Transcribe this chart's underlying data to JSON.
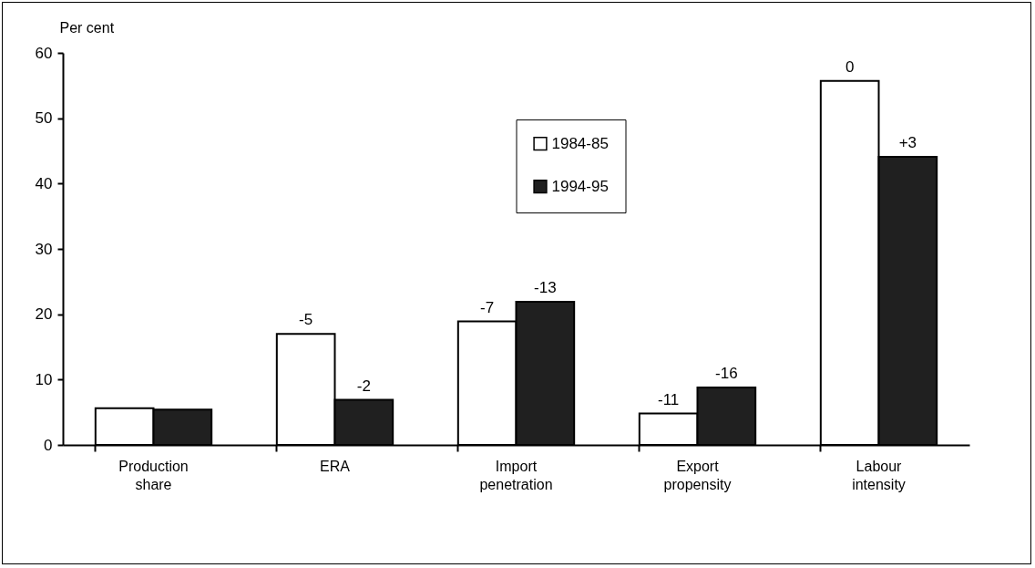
{
  "chart_data": {
    "type": "bar",
    "ylabel": "Per cent",
    "categories": [
      "Production share",
      "ERA",
      "Import penetration",
      "Export propensity",
      "Labour intensity"
    ],
    "series": [
      {
        "name": "1984-85",
        "color": "#ffffff",
        "values": [
          5.6,
          17.0,
          18.9,
          4.8,
          55.7
        ]
      },
      {
        "name": "1994-95",
        "color": "#202020",
        "values": [
          5.4,
          6.9,
          21.9,
          8.8,
          44.1
        ]
      }
    ],
    "annotations": [
      {
        "text": "-5",
        "x": "ERA",
        "y": 17.0
      },
      {
        "text": "-2",
        "x": "ERA",
        "y": 6.9
      },
      {
        "text": "-7",
        "x": "Import penetration",
        "y": 18.9
      },
      {
        "text": "-13",
        "x": "Import penetration",
        "y": 21.9
      },
      {
        "text": "-11",
        "x": "Export propensity",
        "y": 4.8
      },
      {
        "text": "-16",
        "x": "Export propensity",
        "y": 8.8
      },
      {
        "text": "0",
        "x": "Labour intensity",
        "y": 55.7
      },
      {
        "text": "+3",
        "x": "Labour intensity",
        "y": 44.1
      }
    ],
    "ylim": [
      0,
      60
    ],
    "yticks": [
      0,
      10,
      20,
      30,
      40,
      50,
      60
    ],
    "grid": false,
    "legend": "top"
  }
}
